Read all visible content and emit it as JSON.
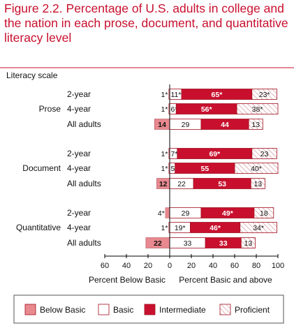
{
  "title": "Figure 2.2. Percentage of U.S. adults in college and the nation in each prose, document, and quantitative literacy level",
  "chart_data": {
    "type": "bar",
    "stacked": true,
    "diverging": true,
    "title": "Figure 2.2. Percentage of U.S. adults in college and the nation in each prose, document, and quantitative literacy level",
    "row_axis_title": "Literacy scale",
    "xlabel_left": "Percent Below Basic",
    "xlabel_right": "Percent Basic and above",
    "xlim": [
      -60,
      100
    ],
    "xticks": [
      "60",
      "40",
      "20",
      "0",
      "20",
      "40",
      "60",
      "80",
      "100"
    ],
    "xtick_values": [
      -60,
      -40,
      -20,
      0,
      20,
      40,
      60,
      80,
      100
    ],
    "legend_position": "bottom",
    "colors": {
      "below_basic": "#e8898f",
      "basic": "#ffffff",
      "intermediate": "#c8102e",
      "proficient": "#ffffff",
      "proficient_hatch": "#d9a0a6",
      "accent": "#c8102e"
    },
    "legend": [
      {
        "key": "below_basic",
        "label": "Below Basic"
      },
      {
        "key": "basic",
        "label": "Basic"
      },
      {
        "key": "intermediate",
        "label": "Intermediate"
      },
      {
        "key": "proficient",
        "label": "Proficient"
      }
    ],
    "groups": [
      {
        "name": "Prose",
        "rows": [
          {
            "label": "2-year",
            "below_basic": 1,
            "basic": 11,
            "intermediate": 65,
            "proficient": 23,
            "labels": {
              "below_basic": "1*",
              "basic": "11*",
              "intermediate": "65*",
              "proficient": "23*"
            }
          },
          {
            "label": "4-year",
            "below_basic": 1,
            "basic": 6,
            "intermediate": 56,
            "proficient": 38,
            "labels": {
              "below_basic": "1*",
              "basic": "6*",
              "intermediate": "56*",
              "proficient": "38*"
            }
          },
          {
            "label": "All adults",
            "below_basic": 14,
            "basic": 29,
            "intermediate": 44,
            "proficient": 13,
            "labels": {
              "below_basic": "14",
              "basic": "29",
              "intermediate": "44",
              "proficient": "13"
            }
          }
        ]
      },
      {
        "name": "Document",
        "rows": [
          {
            "label": "2-year",
            "below_basic": 1,
            "basic": 7,
            "intermediate": 69,
            "proficient": 23,
            "labels": {
              "below_basic": "1*",
              "basic": "7*",
              "intermediate": "69*",
              "proficient": "23"
            }
          },
          {
            "label": "4-year",
            "below_basic": 1,
            "basic": 5,
            "intermediate": 55,
            "proficient": 40,
            "labels": {
              "below_basic": "1*",
              "basic": "5*",
              "intermediate": "55",
              "proficient": "40*"
            }
          },
          {
            "label": "All adults",
            "below_basic": 12,
            "basic": 22,
            "intermediate": 53,
            "proficient": 13,
            "labels": {
              "below_basic": "12",
              "basic": "22",
              "intermediate": "53",
              "proficient": "13"
            }
          }
        ]
      },
      {
        "name": "Quantitative",
        "rows": [
          {
            "label": "2-year",
            "below_basic": 4,
            "basic": 29,
            "intermediate": 49,
            "proficient": 18,
            "labels": {
              "below_basic": "4*",
              "basic": "29",
              "intermediate": "49*",
              "proficient": "18"
            }
          },
          {
            "label": "4-year",
            "below_basic": 1,
            "basic": 19,
            "intermediate": 46,
            "proficient": 34,
            "labels": {
              "below_basic": "1*",
              "basic": "19*",
              "intermediate": "46*",
              "proficient": "34*"
            }
          },
          {
            "label": "All adults",
            "below_basic": 22,
            "basic": 33,
            "intermediate": 33,
            "proficient": 13,
            "labels": {
              "below_basic": "22",
              "basic": "33",
              "intermediate": "33",
              "proficient": "13"
            }
          }
        ]
      }
    ]
  }
}
